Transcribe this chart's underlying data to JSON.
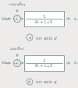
{
  "bg_color": "#edecea",
  "text_color": "#6b7d8a",
  "line_color": "#8a9daa",
  "box_color": "#ffffff",
  "box_edge": "#8a9daa",
  "panel_a": {
    "input_label": "$V_{sd}$",
    "top_label": "$-\\omega_{dq}\\Phi_{sq}$",
    "box_num": "1",
    "box_den": "$R_s + L_{sd}S$",
    "output_label": "$i_{sd}$",
    "letter": "a",
    "caption": " on axis $d$"
  },
  "panel_b": {
    "input_label": "$V_{sq}$",
    "top_label": "$\\omega_{dq}\\Phi_{sd}$",
    "box_num": "1",
    "box_den": "$R_s + L_{sq}S$",
    "output_label": "$i_{sq}$",
    "letter": "b",
    "caption": " on axis $q$"
  },
  "fig_width": 1.0,
  "fig_height": 1.14,
  "dpi": 100
}
